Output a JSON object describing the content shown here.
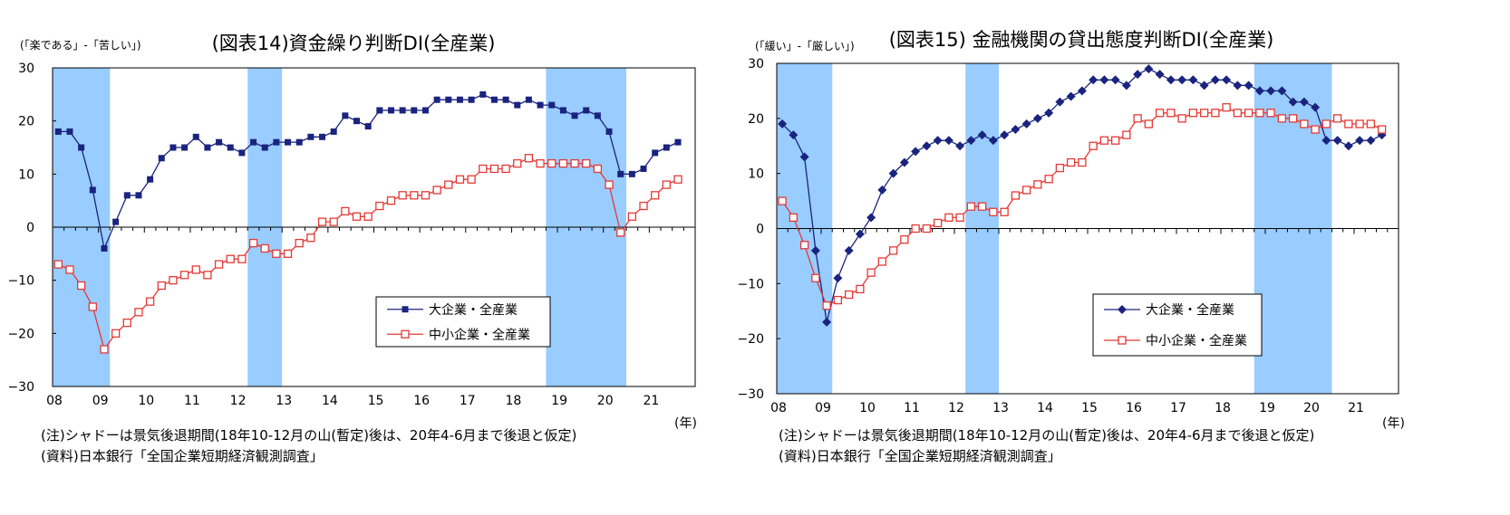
{
  "notes": {
    "shadow_note": "(注)シャドーは景気後退期間(18年10-12月の山(暫定)後は、20年4-6月まで後退と仮定)",
    "source_note": "(資料)日本銀行「全国企業短期経済観測調査」"
  },
  "chart_data": [
    {
      "type": "line",
      "title": "(図表14)資金繰り判断DI(全産業)",
      "ylabel": "(「楽である」-「苦しい」)",
      "xlabel": "(年)",
      "ylim": [
        -30,
        30
      ],
      "yticks": [
        "30",
        "20",
        "10",
        "0",
        "−10",
        "−20",
        "−30"
      ],
      "xticks": [
        "08",
        "09",
        "10",
        "11",
        "12",
        "13",
        "14",
        "15",
        "16",
        "17",
        "18",
        "19",
        "20",
        "21"
      ],
      "x_start": "2008Q1",
      "frequency": "quarterly",
      "recession_shading": [
        [
          "2008Q1",
          "2009Q1"
        ],
        [
          "2012Q2",
          "2012Q4"
        ],
        [
          "2018Q4",
          "2020Q2"
        ]
      ],
      "legend_position": "lower-right",
      "series": [
        {
          "name": "大企業・全産業",
          "color": "#1a237e",
          "marker": "filled-square",
          "values": [
            18,
            18,
            15,
            7,
            -4,
            1,
            6,
            6,
            9,
            13,
            15,
            15,
            17,
            15,
            16,
            15,
            14,
            16,
            15,
            16,
            16,
            16,
            17,
            17,
            18,
            21,
            20,
            19,
            22,
            22,
            22,
            22,
            22,
            24,
            24,
            24,
            24,
            25,
            24,
            24,
            23,
            24,
            23,
            23,
            22,
            21,
            22,
            21,
            18,
            10,
            10,
            11,
            14,
            15,
            16
          ]
        },
        {
          "name": "中小企業・全産業",
          "color": "#e53935",
          "marker": "open-square",
          "values": [
            -7,
            -8,
            -11,
            -15,
            -23,
            -20,
            -18,
            -16,
            -14,
            -11,
            -10,
            -9,
            -8,
            -9,
            -7,
            -6,
            -6,
            -3,
            -4,
            -5,
            -5,
            -3,
            -2,
            1,
            1,
            3,
            2,
            2,
            4,
            5,
            6,
            6,
            6,
            7,
            8,
            9,
            9,
            11,
            11,
            11,
            12,
            13,
            12,
            12,
            12,
            12,
            12,
            11,
            8,
            -1,
            2,
            4,
            6,
            8,
            9
          ]
        }
      ]
    },
    {
      "type": "line",
      "title": "(図表15) 金融機関の貸出態度判断DI(全産業)",
      "ylabel": "(「緩い」-「厳しい」)",
      "xlabel": "(年)",
      "ylim": [
        -30,
        30
      ],
      "yticks": [
        "30",
        "20",
        "10",
        "0",
        "−10",
        "−20",
        "−30"
      ],
      "xticks": [
        "08",
        "09",
        "10",
        "11",
        "12",
        "13",
        "14",
        "15",
        "16",
        "17",
        "18",
        "19",
        "20",
        "21"
      ],
      "x_start": "2008Q1",
      "frequency": "quarterly",
      "recession_shading": [
        [
          "2008Q1",
          "2009Q1"
        ],
        [
          "2012Q2",
          "2012Q4"
        ],
        [
          "2018Q4",
          "2020Q2"
        ]
      ],
      "legend_position": "lower-right",
      "series": [
        {
          "name": "大企業・全産業",
          "color": "#1a237e",
          "marker": "filled-diamond",
          "values": [
            19,
            17,
            13,
            -4,
            -17,
            -9,
            -4,
            -1,
            2,
            7,
            10,
            12,
            14,
            15,
            16,
            16,
            15,
            16,
            17,
            16,
            17,
            18,
            19,
            20,
            21,
            23,
            24,
            25,
            27,
            27,
            27,
            26,
            28,
            29,
            28,
            27,
            27,
            27,
            26,
            27,
            27,
            26,
            26,
            25,
            25,
            25,
            23,
            23,
            22,
            16,
            16,
            15,
            16,
            16,
            17
          ]
        },
        {
          "name": "中小企業・全産業",
          "color": "#e53935",
          "marker": "open-square",
          "values": [
            5,
            2,
            -3,
            -9,
            -14,
            -13,
            -12,
            -11,
            -8,
            -6,
            -4,
            -2,
            0,
            0,
            1,
            2,
            2,
            4,
            4,
            3,
            3,
            6,
            7,
            8,
            9,
            11,
            12,
            12,
            15,
            16,
            16,
            17,
            20,
            19,
            21,
            21,
            20,
            21,
            21,
            21,
            22,
            21,
            21,
            21,
            21,
            20,
            20,
            19,
            18,
            19,
            20,
            19,
            19,
            19,
            18
          ]
        }
      ]
    }
  ]
}
